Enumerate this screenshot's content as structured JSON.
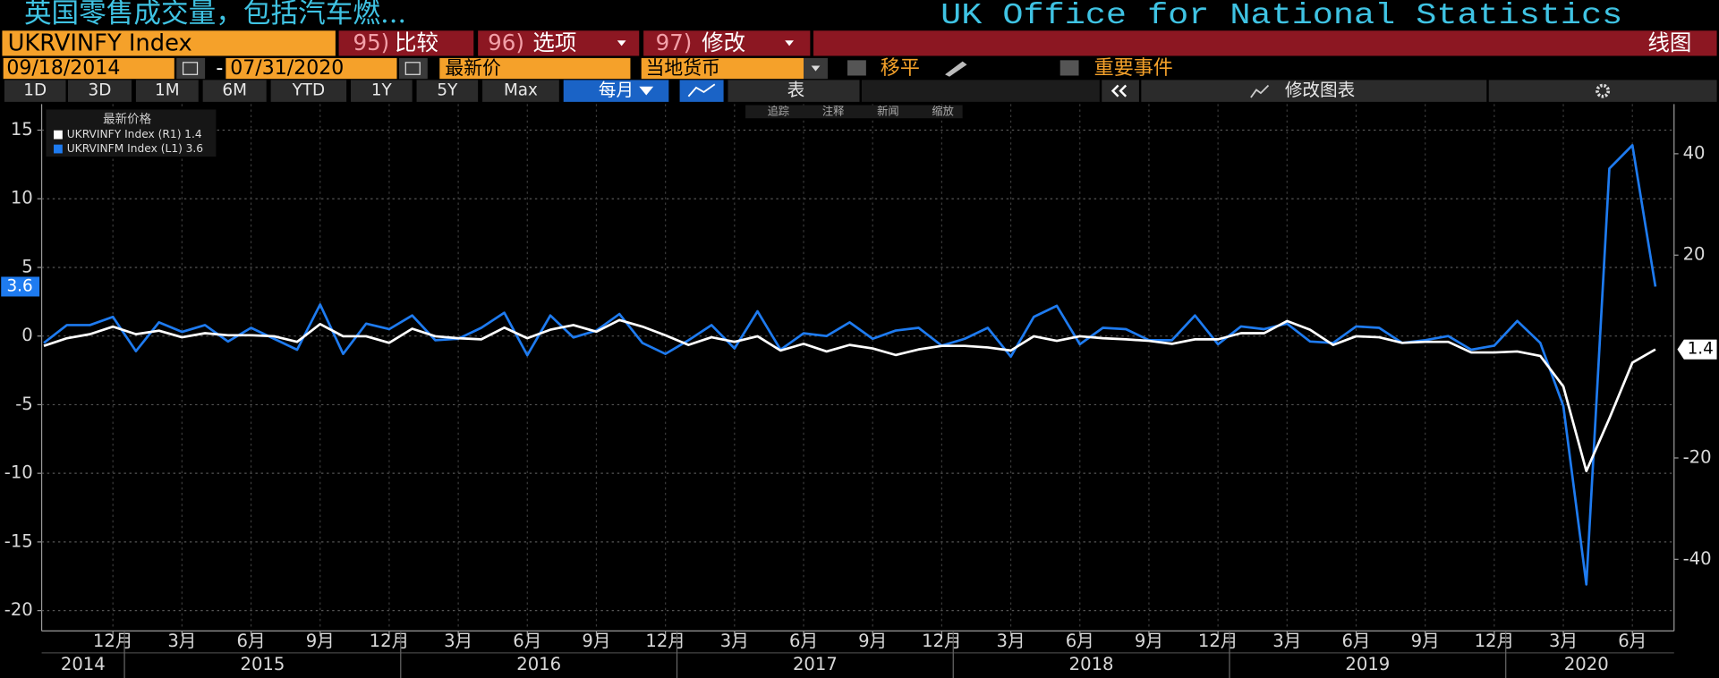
{
  "header": {
    "title": "英国零售成交量，包括汽车燃...",
    "source": "UK Office for National Statistics"
  },
  "toolbar": {
    "ticker": "UKRVINFY Index",
    "menus": [
      {
        "num": "95)",
        "label": "比较"
      },
      {
        "num": "96)",
        "label": "选项"
      },
      {
        "num": "97)",
        "label": "修改"
      }
    ],
    "chart_kind": "线图"
  },
  "controls": {
    "start_date": "09/18/2014",
    "dash": "-",
    "end_date": "07/31/2020",
    "price": "最新价",
    "currency": "当地货币",
    "moving_avg": "移平",
    "events": "重要事件"
  },
  "periods": [
    "1D",
    "3D",
    "1M",
    "6M",
    "YTD",
    "1Y",
    "5Y",
    "Max"
  ],
  "frequency": "每月",
  "table": "表",
  "edit_chart": "修改图表",
  "chart_tools": [
    "追踪",
    "注释",
    "新闻",
    "缩放"
  ],
  "chart_data": {
    "type": "line",
    "legend_title": "最新价格",
    "categories": [
      "2014-09",
      "2014-10",
      "2014-11",
      "2014-12",
      "2015-01",
      "2015-02",
      "2015-03",
      "2015-04",
      "2015-05",
      "2015-06",
      "2015-07",
      "2015-08",
      "2015-09",
      "2015-10",
      "2015-11",
      "2015-12",
      "2016-01",
      "2016-02",
      "2016-03",
      "2016-04",
      "2016-05",
      "2016-06",
      "2016-07",
      "2016-08",
      "2016-09",
      "2016-10",
      "2016-11",
      "2016-12",
      "2017-01",
      "2017-02",
      "2017-03",
      "2017-04",
      "2017-05",
      "2017-06",
      "2017-07",
      "2017-08",
      "2017-09",
      "2017-10",
      "2017-11",
      "2017-12",
      "2018-01",
      "2018-02",
      "2018-03",
      "2018-04",
      "2018-05",
      "2018-06",
      "2018-07",
      "2018-08",
      "2018-09",
      "2018-10",
      "2018-11",
      "2018-12",
      "2019-01",
      "2019-02",
      "2019-03",
      "2019-04",
      "2019-05",
      "2019-06",
      "2019-07",
      "2019-08",
      "2019-09",
      "2019-10",
      "2019-11",
      "2019-12",
      "2020-01",
      "2020-02",
      "2020-03",
      "2020-04",
      "2020-05",
      "2020-06",
      "2020-07"
    ],
    "series": [
      {
        "name": "UKRVINFY Index  (R1)",
        "color": "#ffffff",
        "axis": "y2",
        "values": [
          2.1,
          3.6,
          4.4,
          5.9,
          4.4,
          5.1,
          3.8,
          4.6,
          4.2,
          4.2,
          4.0,
          2.9,
          6.4,
          4.0,
          4.0,
          2.7,
          5.5,
          4.0,
          3.6,
          3.4,
          5.7,
          3.6,
          5.3,
          6.2,
          4.9,
          7.2,
          5.9,
          4.2,
          2.3,
          3.8,
          2.9,
          4.0,
          1.2,
          2.5,
          1.0,
          2.3,
          1.6,
          0.3,
          1.4,
          2.1,
          2.1,
          1.8,
          1.2,
          4.0,
          3.1,
          4.0,
          3.6,
          3.4,
          3.1,
          2.5,
          3.4,
          3.4,
          4.6,
          4.6,
          7.0,
          5.3,
          2.3,
          4.0,
          3.8,
          2.7,
          2.9,
          2.9,
          0.8,
          0.8,
          1.0,
          0.1,
          -5.9,
          -22.6,
          -12.2,
          -1.2,
          1.4
        ]
      },
      {
        "name": "UKRVINFM Index  (L1)",
        "color": "#1e7bf0",
        "axis": "y",
        "values": [
          -0.5,
          0.8,
          0.8,
          1.4,
          -1.1,
          1.0,
          0.3,
          0.8,
          -0.4,
          0.6,
          -0.2,
          -1.0,
          2.3,
          -1.3,
          0.9,
          0.5,
          1.5,
          -0.3,
          -0.2,
          0.6,
          1.7,
          -1.4,
          1.5,
          -0.1,
          0.4,
          1.6,
          -0.5,
          -1.3,
          -0.3,
          0.8,
          -0.9,
          1.8,
          -1.0,
          0.2,
          0.0,
          1.0,
          -0.2,
          0.4,
          0.6,
          -0.7,
          -0.2,
          0.6,
          -1.5,
          1.4,
          2.2,
          -0.6,
          0.6,
          0.5,
          -0.3,
          -0.3,
          1.5,
          -0.6,
          0.7,
          0.5,
          0.9,
          -0.4,
          -0.5,
          0.7,
          0.6,
          -0.5,
          -0.3,
          0.0,
          -1.0,
          -0.7,
          1.1,
          -0.5,
          -5.1,
          -18.1,
          12.2,
          13.9,
          3.6
        ]
      }
    ],
    "ylim": [
      -21.4,
      16.9
    ],
    "yticks": [
      15,
      10,
      5,
      0,
      -5,
      -10,
      -15,
      -20
    ],
    "y2lim": [
      -53.9,
      49.8
    ],
    "y2ticks": [
      40,
      20,
      -20,
      -40
    ],
    "xticks": [
      {
        "value": "2014-12",
        "label": "12月"
      },
      {
        "value": "2015-03",
        "label": "3月"
      },
      {
        "value": "2015-06",
        "label": "6月"
      },
      {
        "value": "2015-09",
        "label": "9月"
      },
      {
        "value": "2015-12",
        "label": "12月"
      },
      {
        "value": "2016-03",
        "label": "3月"
      },
      {
        "value": "2016-06",
        "label": "6月"
      },
      {
        "value": "2016-09",
        "label": "9月"
      },
      {
        "value": "2016-12",
        "label": "12月"
      },
      {
        "value": "2017-03",
        "label": "3月"
      },
      {
        "value": "2017-06",
        "label": "6月"
      },
      {
        "value": "2017-09",
        "label": "9月"
      },
      {
        "value": "2017-12",
        "label": "12月"
      },
      {
        "value": "2018-03",
        "label": "3月"
      },
      {
        "value": "2018-06",
        "label": "6月"
      },
      {
        "value": "2018-09",
        "label": "9月"
      },
      {
        "value": "2018-12",
        "label": "12月"
      },
      {
        "value": "2019-03",
        "label": "3月"
      },
      {
        "value": "2019-06",
        "label": "6月"
      },
      {
        "value": "2019-09",
        "label": "9月"
      },
      {
        "value": "2019-12",
        "label": "12月"
      },
      {
        "value": "2020-03",
        "label": "3月"
      },
      {
        "value": "2020-06",
        "label": "6月"
      }
    ],
    "years": [
      "2014",
      "2015",
      "2016",
      "2017",
      "2018",
      "2019",
      "2020"
    ],
    "grid": true
  }
}
